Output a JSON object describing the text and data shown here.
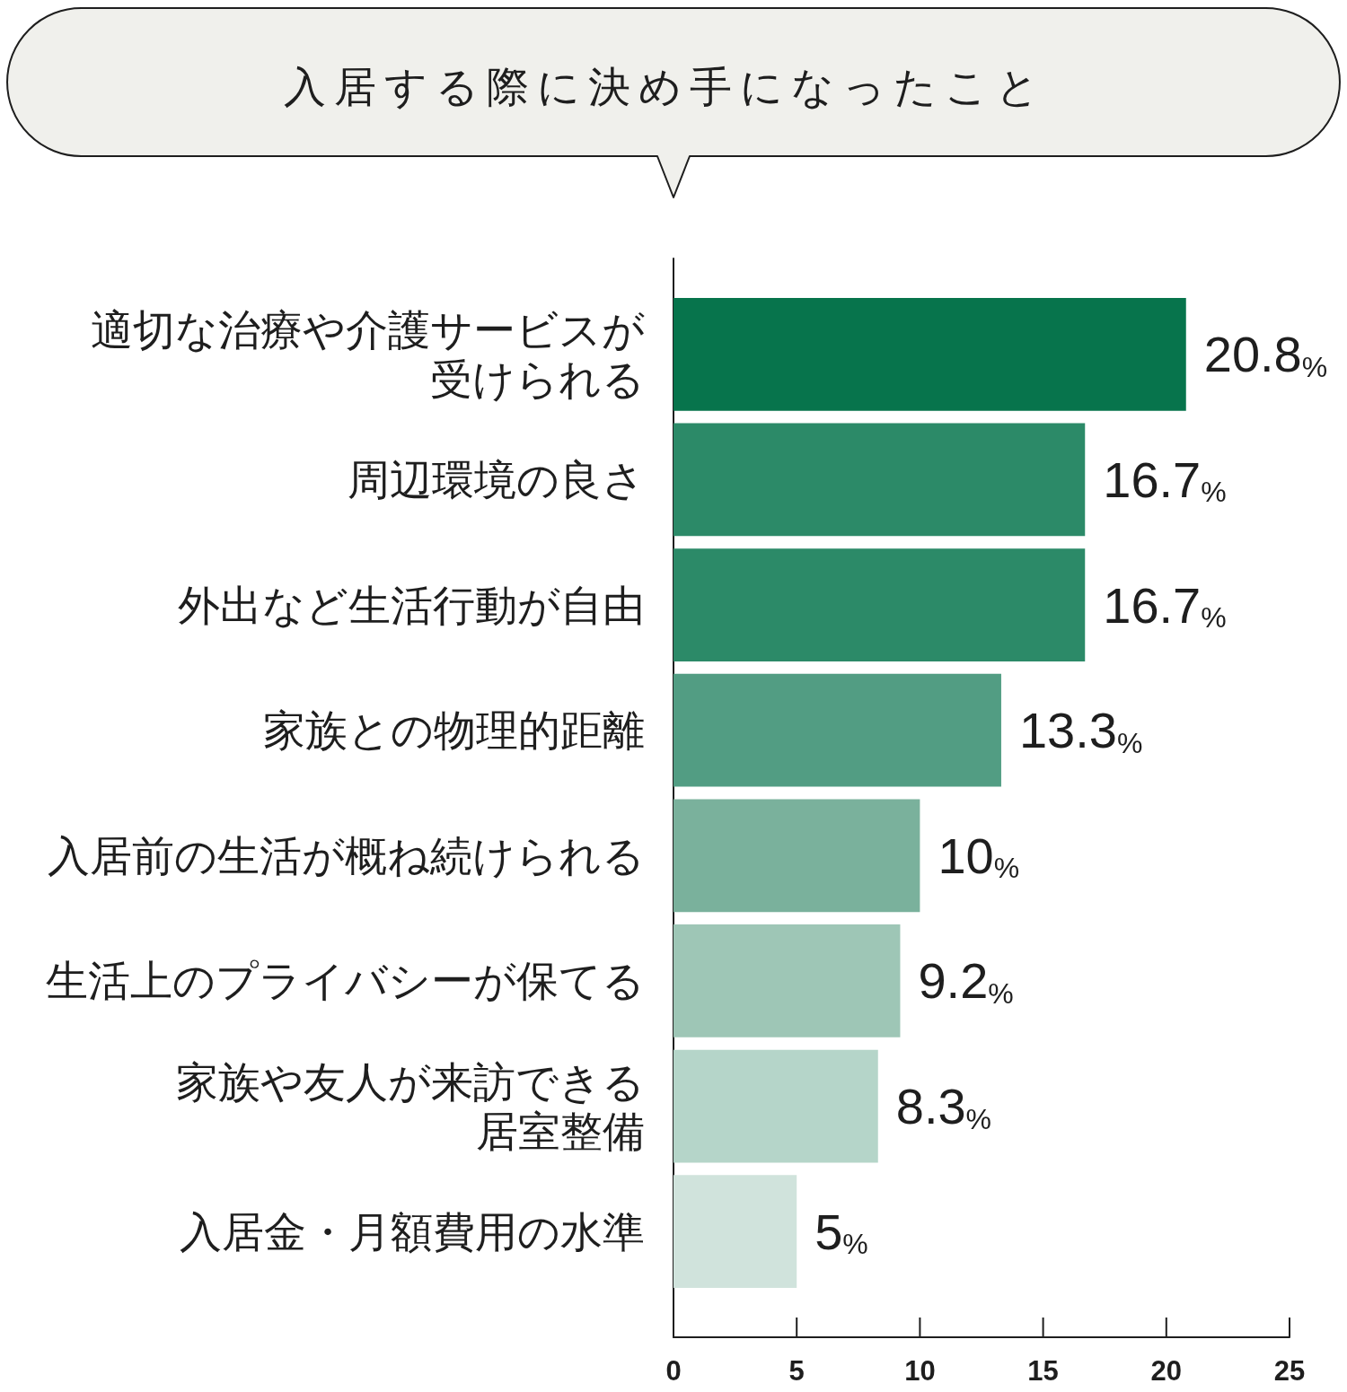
{
  "chart_data": {
    "type": "bar",
    "orientation": "horizontal",
    "title": "入居する際に決め手になったこと",
    "categories": [
      "適切な治療や介護サービスが受けられる",
      "周辺環境の良さ",
      "外出など生活行動が自由",
      "家族との物理的距離",
      "入居前の生活が概ね続けられる",
      "生活上のプライバシーが保てる",
      "家族や友人が来訪できる居室整備",
      "入居金・月額費用の水準"
    ],
    "values": [
      20.8,
      16.7,
      16.7,
      13.3,
      10,
      9.2,
      8.3,
      5
    ],
    "colors": [
      "#07744c",
      "#2c8a68",
      "#2c8a68",
      "#529d83",
      "#7ab19c",
      "#9ec6b6",
      "#b5d5c9",
      "#d0e3dc"
    ],
    "value_labels": [
      "20.8%",
      "16.7%",
      "16.7%",
      "13.3%",
      "10%",
      "9.2%",
      "8.3%",
      "5%"
    ],
    "xlim": [
      0,
      25
    ],
    "xticks": [
      0,
      5,
      10,
      15,
      20,
      25
    ]
  }
}
